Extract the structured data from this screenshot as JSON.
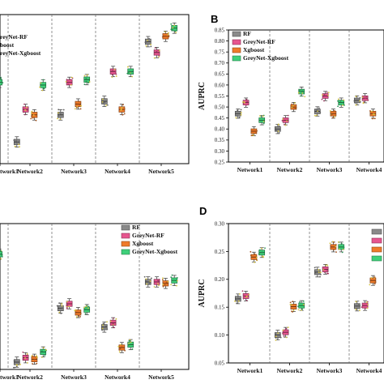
{
  "palette": {
    "RF": "#8a8a8a",
    "GreyNet-RF": "#e7558f",
    "Xgboost": "#ef7a2a",
    "GreyNet-Xgboost": "#3fd07a"
  },
  "chart_data": [
    {
      "id": "A",
      "type": "box",
      "letter": "",
      "ylabel": "",
      "ylim": [
        0.25,
        0.8
      ],
      "yticks": [],
      "categories": [
        "twork1",
        "Network2",
        "Network3",
        "Network4",
        "Network5"
      ],
      "legend": {
        "placement": "top-left",
        "entries": [
          "reyNet-RF",
          "boost",
          "reyNet-Xgboost"
        ]
      },
      "series": [
        {
          "key": "RF",
          "medians": [
            null,
            0.33,
            0.43,
            0.48,
            0.7
          ]
        },
        {
          "key": "GreyNet-RF",
          "medians": [
            null,
            0.45,
            0.55,
            0.59,
            0.66
          ]
        },
        {
          "key": "Xgboost",
          "medians": [
            0.51,
            0.43,
            0.47,
            0.45,
            0.72
          ]
        },
        {
          "key": "GreyNet-Xgboost",
          "medians": [
            0.55,
            0.54,
            0.56,
            0.59,
            0.75
          ]
        }
      ]
    },
    {
      "id": "B",
      "type": "box",
      "letter": "B",
      "ylabel": "AUPRC",
      "ylim": [
        0.25,
        0.85
      ],
      "yticks": [
        "0.25",
        "0.30",
        "0.35",
        "0.40",
        "0.45",
        "0.50",
        "0.55",
        "0.60",
        "0.65",
        "0.70",
        "0.75",
        "0.80",
        "0.85"
      ],
      "categories": [
        "Network1",
        "Network2",
        "Network3",
        "Network4"
      ],
      "legend": {
        "placement": "top-left",
        "entries": [
          "RF",
          "GreyNet-RF",
          "Xgboost",
          "GreyNet-Xgboost"
        ]
      },
      "series": [
        {
          "key": "RF",
          "medians": [
            0.47,
            0.4,
            0.48,
            0.53
          ]
        },
        {
          "key": "GreyNet-RF",
          "medians": [
            0.52,
            0.44,
            0.55,
            0.54
          ]
        },
        {
          "key": "Xgboost",
          "medians": [
            0.39,
            0.5,
            0.47,
            0.47
          ]
        },
        {
          "key": "GreyNet-Xgboost",
          "medians": [
            0.44,
            0.57,
            0.52,
            null
          ]
        }
      ]
    },
    {
      "id": "C",
      "type": "box",
      "letter": "",
      "ylabel": "",
      "ylim": [
        0.0,
        1.0
      ],
      "yticks": [],
      "categories": [
        "twork1",
        "Network2",
        "Network3",
        "Network4",
        "Network5"
      ],
      "legend": {
        "placement": "top-right",
        "entries": [
          "RF",
          "GreyNet-RF",
          "Xgboost",
          "GreyNet-Xgboost"
        ]
      },
      "series": [
        {
          "key": "RF",
          "medians": [
            null,
            0.05,
            0.42,
            0.29,
            0.6
          ]
        },
        {
          "key": "GreyNet-RF",
          "medians": [
            null,
            0.08,
            0.45,
            0.32,
            0.6
          ]
        },
        {
          "key": "Xgboost",
          "medians": [
            0.74,
            0.07,
            0.39,
            0.15,
            0.59
          ]
        },
        {
          "key": "GreyNet-Xgboost",
          "medians": [
            0.79,
            0.12,
            0.41,
            0.17,
            0.61
          ]
        }
      ]
    },
    {
      "id": "D",
      "type": "box",
      "letter": "D",
      "ylabel": "AUPRC",
      "ylim": [
        0.05,
        0.3
      ],
      "yticks": [
        "0.05",
        "0.10",
        "0.15",
        "0.20",
        "0.25",
        "0.30"
      ],
      "categories": [
        "Network1",
        "Network2",
        "Network3",
        "Network4"
      ],
      "legend": {
        "placement": "top-right",
        "entries": []
      },
      "series": [
        {
          "key": "RF",
          "medians": [
            0.165,
            0.1,
            0.213,
            0.152
          ]
        },
        {
          "key": "GreyNet-RF",
          "medians": [
            0.17,
            0.105,
            0.218,
            0.153
          ]
        },
        {
          "key": "Xgboost",
          "medians": [
            0.24,
            0.151,
            0.258,
            0.198
          ]
        },
        {
          "key": "GreyNet-Xgboost",
          "medians": [
            0.248,
            0.153,
            0.258,
            null
          ]
        }
      ]
    }
  ]
}
